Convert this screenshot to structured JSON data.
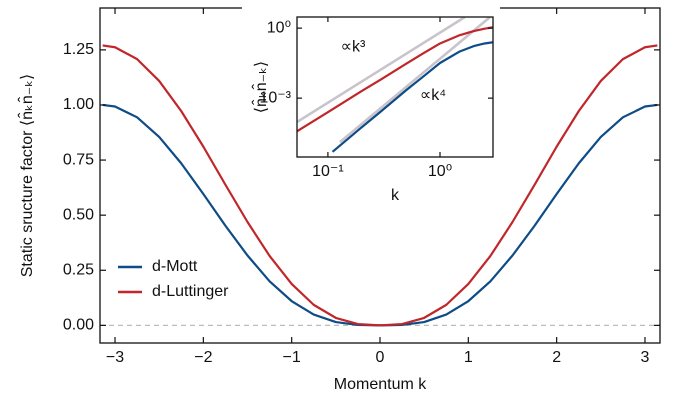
{
  "chart_data": [
    {
      "type": "line",
      "xlabel": "Momentum k",
      "ylabel": "Static sructure factor ⟨n̂ₖn̂₋ₖ⟩",
      "x": [
        -3.14,
        -3,
        -2.75,
        -2.5,
        -2.25,
        -2,
        -1.75,
        -1.5,
        -1.25,
        -1,
        -0.75,
        -0.5,
        -0.25,
        0,
        0.25,
        0.5,
        0.75,
        1,
        1.25,
        1.5,
        1.75,
        2,
        2.25,
        2.5,
        2.75,
        3,
        3.14
      ],
      "series": [
        {
          "name": "d-Mott",
          "color": "#0e4c87",
          "values": [
            1,
            0.993,
            0.944,
            0.855,
            0.735,
            0.596,
            0.452,
            0.317,
            0.2,
            0.11,
            0.049,
            0.015,
            0.002,
            0,
            0.002,
            0.015,
            0.049,
            0.11,
            0.2,
            0.317,
            0.452,
            0.596,
            0.735,
            0.855,
            0.944,
            0.993,
            1
          ]
        },
        {
          "name": "d-Luttinger",
          "color": "#c0262a",
          "values": [
            1.27,
            1.262,
            1.208,
            1.109,
            0.972,
            0.811,
            0.638,
            0.469,
            0.315,
            0.188,
            0.093,
            0.034,
            0.006,
            0,
            0.006,
            0.034,
            0.093,
            0.188,
            0.315,
            0.469,
            0.638,
            0.811,
            0.972,
            1.109,
            1.208,
            1.262,
            1.27
          ]
        }
      ],
      "xlim": [
        -3.17,
        3.17
      ],
      "ylim": [
        -0.08,
        1.44
      ],
      "xticks": [
        {
          "value": -3,
          "label": "−3"
        },
        {
          "value": -2,
          "label": "−2"
        },
        {
          "value": -1,
          "label": "−1"
        },
        0,
        1,
        2,
        3
      ],
      "yticks": [
        {
          "value": 0,
          "label": "0.00"
        },
        {
          "value": 0.25,
          "label": "0.25"
        },
        {
          "value": 0.5,
          "label": "0.50"
        },
        {
          "value": 0.75,
          "label": "0.75"
        },
        {
          "value": 1,
          "label": "1.00"
        },
        {
          "value": 1.25,
          "label": "1.25"
        }
      ],
      "hline": 0,
      "legend": "lower left"
    },
    {
      "type": "line",
      "xlabel": "k",
      "ylabel": "⟨n̂ₖn̂₋ₖ⟩",
      "log_x": true,
      "log_y": true,
      "series": [
        {
          "color": "#0e4c87",
          "x": [
            0.11,
            0.2,
            0.3,
            0.5,
            0.7,
            1,
            1.5,
            2,
            2.5,
            3
          ],
          "values": [
            5e-06,
            5.6e-05,
            0.00028,
            0.0022,
            0.008,
            0.032,
            0.1,
            0.17,
            0.22,
            0.25
          ]
        },
        {
          "color": "#c0262a",
          "x": [
            0.053,
            0.1,
            0.2,
            0.3,
            0.5,
            0.7,
            1,
            1.5,
            2,
            2.5,
            3
          ],
          "values": [
            3.8e-05,
            0.00025,
            0.002,
            0.0065,
            0.03,
            0.08,
            0.22,
            0.5,
            0.75,
            0.95,
            1.1
          ]
        }
      ],
      "guides": [
        {
          "label": "∝k³",
          "color": "#c9c3cc",
          "x": [
            0.053,
            1.67
          ],
          "values": [
            9.5e-05,
            3
          ]
        },
        {
          "label": "∝k⁴",
          "color": "#c9c3cc",
          "x": [
            0.128,
            2.8
          ],
          "values": [
            1.3e-05,
            3
          ]
        }
      ],
      "xlim": [
        0.053,
        2.97
      ],
      "ylim": [
        3e-06,
        3
      ],
      "xticks": [
        {
          "value": 0.1,
          "label": "10⁻¹"
        },
        {
          "value": 1,
          "label": "10⁰"
        }
      ],
      "yticks": [
        {
          "value": 0.001,
          "label": "10⁻³"
        },
        {
          "value": 1,
          "label": "10⁰"
        }
      ]
    }
  ]
}
